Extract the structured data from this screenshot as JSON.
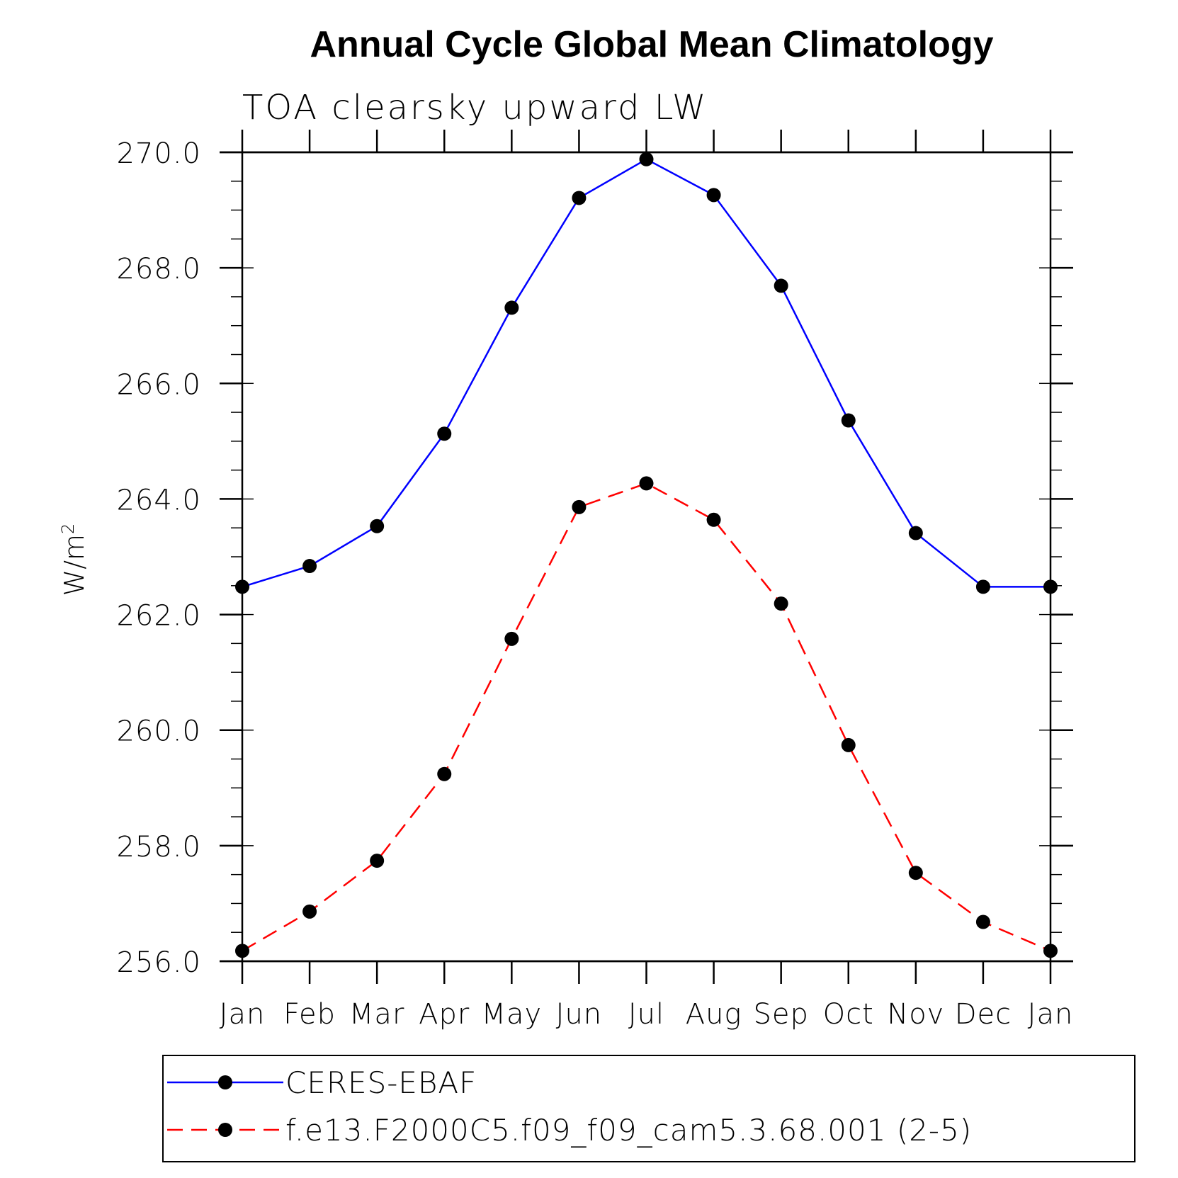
{
  "chart_data": {
    "type": "line",
    "title": "Annual Cycle Global Mean Climatology",
    "subtitle": "TOA clearsky upward LW",
    "ylabel_base": "W/m",
    "ylabel_sup": "2",
    "ylim": [
      256.0,
      270.0
    ],
    "yticks": [
      "256.0",
      "258.0",
      "260.0",
      "262.0",
      "264.0",
      "266.0",
      "268.0",
      "270.0"
    ],
    "categories": [
      "Jan",
      "Feb",
      "Mar",
      "Apr",
      "May",
      "Jun",
      "Jul",
      "Aug",
      "Sep",
      "Oct",
      "Nov",
      "Dec",
      "Jan"
    ],
    "series": [
      {
        "name": "CERES-EBAF",
        "color": "#0000ff",
        "dash": "solid",
        "values": [
          262.48,
          262.84,
          263.53,
          265.13,
          267.31,
          269.21,
          269.88,
          269.26,
          267.69,
          265.36,
          263.41,
          262.48,
          262.48
        ]
      },
      {
        "name": "f.e13.F2000C5.f09_f09_cam5.3.68.001 (2-5)",
        "color": "#ff0000",
        "dash": "dashed",
        "values": [
          256.18,
          256.86,
          257.74,
          259.24,
          261.58,
          263.86,
          264.27,
          263.64,
          262.19,
          259.74,
          257.53,
          256.68,
          256.18
        ]
      }
    ],
    "marker_color": "#000000",
    "legend_position": "bottom"
  }
}
